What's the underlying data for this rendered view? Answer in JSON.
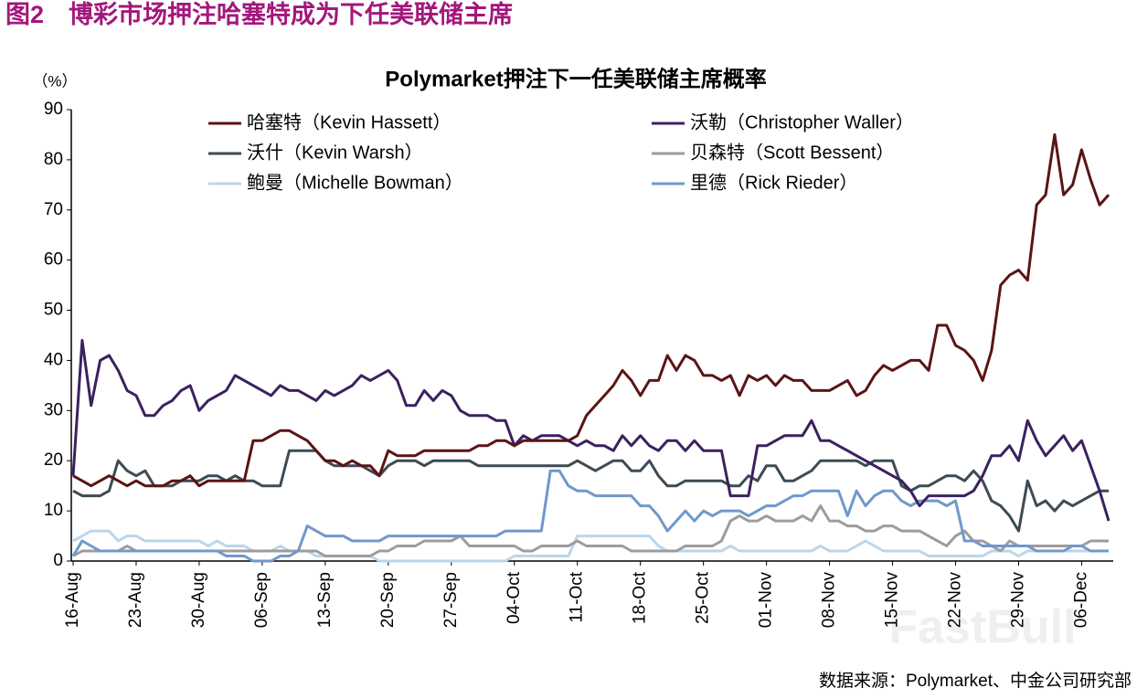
{
  "header": "图2　博彩市场押注哈塞特成为下任美联储主席",
  "chart_data": {
    "type": "line",
    "title": "Polymarket押注下一任美联储主席概率",
    "y_unit": "（%）",
    "source": "数据来源：Polymarket、中金公司研究部",
    "watermark": "FastBull",
    "categories": [
      "16-Aug",
      null,
      null,
      null,
      null,
      null,
      null,
      "23-Aug",
      null,
      null,
      null,
      null,
      null,
      null,
      "30-Aug",
      null,
      null,
      null,
      null,
      null,
      null,
      "06-Sep",
      null,
      null,
      null,
      null,
      null,
      null,
      "13-Sep",
      null,
      null,
      null,
      null,
      null,
      null,
      "20-Sep",
      null,
      null,
      null,
      null,
      null,
      null,
      "27-Sep",
      null,
      null,
      null,
      null,
      null,
      null,
      "04-Oct",
      null,
      null,
      null,
      null,
      null,
      null,
      "11-Oct",
      null,
      null,
      null,
      null,
      null,
      null,
      "18-Oct",
      null,
      null,
      null,
      null,
      null,
      null,
      "25-Oct",
      null,
      null,
      null,
      null,
      null,
      null,
      "01-Nov",
      null,
      null,
      null,
      null,
      null,
      null,
      "08-Nov",
      null,
      null,
      null,
      null,
      null,
      null,
      "15-Nov",
      null,
      null,
      null,
      null,
      null,
      null,
      "22-Nov",
      null,
      null,
      null,
      null,
      null,
      null,
      "29-Nov",
      null,
      null,
      null,
      null,
      null,
      null,
      "06-Dec",
      null,
      null,
      null
    ],
    "ylim": [
      0,
      90
    ],
    "yticks": [
      0,
      10,
      20,
      30,
      40,
      50,
      60,
      70,
      80,
      90
    ],
    "series": [
      {
        "name": "哈塞特（Kevin Hassett）",
        "color": "#5b1414",
        "values": [
          17,
          16,
          15,
          16,
          17,
          16,
          15,
          16,
          15,
          15,
          15,
          16,
          16,
          17,
          15,
          16,
          16,
          16,
          16,
          16,
          24,
          24,
          25,
          26,
          26,
          25,
          24,
          22,
          20,
          20,
          19,
          20,
          19,
          19,
          17,
          22,
          21,
          21,
          21,
          22,
          22,
          22,
          22,
          22,
          22,
          23,
          23,
          24,
          24,
          23,
          24,
          24,
          24,
          24,
          24,
          24,
          25,
          29,
          31,
          33,
          35,
          38,
          36,
          33,
          36,
          36,
          41,
          38,
          41,
          40,
          37,
          37,
          36,
          37,
          33,
          37,
          36,
          37,
          35,
          37,
          36,
          36,
          34,
          34,
          34,
          35,
          36,
          33,
          34,
          37,
          39,
          38,
          39,
          40,
          40,
          38,
          47,
          47,
          43,
          42,
          40,
          36,
          42,
          55,
          57,
          58,
          56,
          71,
          73,
          85,
          73,
          75,
          82,
          76,
          71,
          73
        ]
      },
      {
        "name": "沃勒（Christopher Waller）",
        "color": "#3b2160",
        "values": [
          17,
          44,
          31,
          40,
          41,
          38,
          34,
          33,
          29,
          29,
          31,
          32,
          34,
          35,
          30,
          32,
          33,
          34,
          37,
          36,
          35,
          34,
          33,
          35,
          34,
          34,
          33,
          32,
          34,
          33,
          34,
          35,
          37,
          36,
          37,
          38,
          36,
          31,
          31,
          34,
          32,
          34,
          33,
          30,
          29,
          29,
          29,
          28,
          28,
          23,
          25,
          24,
          25,
          25,
          25,
          24,
          23,
          24,
          23,
          23,
          22,
          25,
          23,
          25,
          23,
          22,
          24,
          24,
          22,
          24,
          22,
          22,
          22,
          13,
          13,
          13,
          23,
          23,
          24,
          25,
          25,
          25,
          28,
          24,
          24,
          23,
          22,
          21,
          20,
          19,
          18,
          17,
          16,
          14,
          11,
          13,
          13,
          13,
          13,
          13,
          14,
          17,
          21,
          21,
          23,
          20,
          28,
          24,
          21,
          23,
          25,
          22,
          24,
          19,
          14,
          8
        ]
      },
      {
        "name": "沃什（Kevin Warsh）",
        "color": "#3e4b53",
        "values": [
          14,
          13,
          13,
          13,
          14,
          20,
          18,
          17,
          18,
          15,
          15,
          15,
          16,
          16,
          16,
          17,
          17,
          16,
          17,
          16,
          16,
          15,
          15,
          15,
          22,
          22,
          22,
          22,
          20,
          19,
          19,
          19,
          19,
          18,
          17,
          19,
          20,
          20,
          20,
          19,
          20,
          20,
          20,
          20,
          20,
          19,
          19,
          19,
          19,
          19,
          19,
          19,
          19,
          19,
          19,
          19,
          20,
          19,
          18,
          19,
          20,
          20,
          18,
          18,
          20,
          17,
          15,
          15,
          16,
          16,
          16,
          16,
          16,
          15,
          15,
          17,
          16,
          19,
          19,
          16,
          16,
          17,
          18,
          20,
          20,
          20,
          20,
          20,
          19,
          20,
          20,
          20,
          15,
          14,
          15,
          15,
          16,
          17,
          17,
          16,
          18,
          16,
          12,
          11,
          9,
          6,
          16,
          11,
          12,
          10,
          12,
          11,
          12,
          13,
          14,
          14
        ]
      },
      {
        "name": "贝森特（Scott Bessent）",
        "color": "#9c9c9c",
        "values": [
          1,
          2,
          2,
          2,
          2,
          2,
          3,
          2,
          2,
          2,
          2,
          2,
          2,
          2,
          2,
          2,
          2,
          2,
          2,
          2,
          2,
          2,
          2,
          2,
          2,
          2,
          2,
          2,
          1,
          1,
          1,
          1,
          1,
          1,
          2,
          2,
          3,
          3,
          3,
          4,
          4,
          4,
          4,
          5,
          3,
          3,
          3,
          3,
          3,
          3,
          2,
          2,
          3,
          3,
          3,
          3,
          4,
          3,
          3,
          3,
          3,
          3,
          2,
          2,
          2,
          2,
          2,
          2,
          3,
          3,
          3,
          3,
          4,
          8,
          9,
          8,
          8,
          9,
          8,
          8,
          8,
          9,
          8,
          11,
          8,
          8,
          7,
          7,
          6,
          6,
          7,
          7,
          6,
          6,
          6,
          5,
          4,
          3,
          5,
          6,
          4,
          4,
          3,
          2,
          4,
          3,
          3,
          3,
          3,
          3,
          3,
          3,
          3,
          4,
          4,
          4
        ]
      },
      {
        "name": "鲍曼（Michelle Bowman）",
        "color": "#bad6ec",
        "values": [
          4,
          5,
          6,
          6,
          6,
          4,
          5,
          5,
          4,
          4,
          4,
          4,
          4,
          4,
          4,
          3,
          4,
          3,
          3,
          3,
          2,
          2,
          2,
          3,
          2,
          2,
          2,
          1,
          1,
          1,
          1,
          1,
          1,
          1,
          0,
          0,
          0,
          0,
          0,
          0,
          0,
          0,
          0,
          0,
          0,
          0,
          0,
          0,
          0,
          1,
          1,
          1,
          1,
          1,
          1,
          1,
          5,
          5,
          5,
          5,
          5,
          5,
          5,
          5,
          5,
          3,
          2,
          2,
          2,
          2,
          2,
          2,
          2,
          3,
          2,
          2,
          2,
          2,
          2,
          2,
          2,
          2,
          2,
          3,
          2,
          2,
          2,
          3,
          4,
          3,
          2,
          2,
          2,
          2,
          2,
          1,
          1,
          1,
          1,
          1,
          1,
          1,
          2,
          2,
          2,
          1,
          2,
          2,
          2,
          2,
          2,
          2,
          2,
          2,
          2,
          2
        ]
      },
      {
        "name": "里德（Rick Rieder）",
        "color": "#7098cb",
        "values": [
          1,
          4,
          3,
          2,
          2,
          2,
          2,
          2,
          2,
          2,
          2,
          2,
          2,
          2,
          2,
          2,
          2,
          1,
          1,
          1,
          0,
          0,
          0,
          1,
          1,
          2,
          7,
          6,
          5,
          5,
          5,
          4,
          4,
          4,
          4,
          5,
          5,
          5,
          5,
          5,
          5,
          5,
          5,
          5,
          5,
          5,
          5,
          5,
          6,
          6,
          6,
          6,
          6,
          18,
          18,
          15,
          14,
          14,
          13,
          13,
          13,
          13,
          13,
          11,
          11,
          9,
          6,
          8,
          10,
          8,
          10,
          9,
          10,
          10,
          10,
          9,
          10,
          11,
          11,
          12,
          13,
          13,
          14,
          14,
          14,
          14,
          9,
          14,
          11,
          13,
          14,
          14,
          12,
          11,
          12,
          12,
          12,
          11,
          12,
          4,
          4,
          3,
          3,
          3,
          3,
          3,
          3,
          2,
          2,
          2,
          2,
          3,
          3,
          2,
          2,
          2
        ]
      }
    ]
  }
}
